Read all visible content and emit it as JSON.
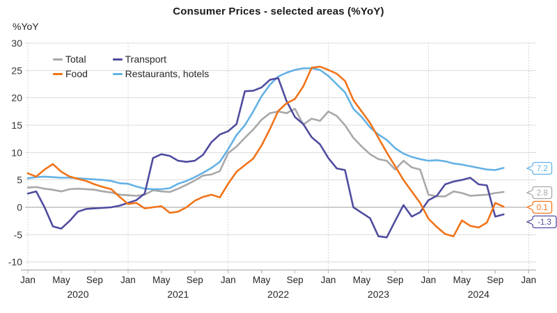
{
  "title": "Consumer Prices - selected areas (%YoY)",
  "y_axis_unit": "%YoY",
  "chart_data": {
    "type": "line",
    "title": "Consumer Prices - selected areas (%YoY)",
    "ylabel": "%YoY",
    "xlabel": "",
    "ylim": [
      -10,
      30
    ],
    "yticks": [
      30,
      25,
      20,
      15,
      10,
      5,
      0,
      -5,
      -10
    ],
    "x_range": "Jan 2020 - Oct 2024, monthly",
    "x_tick_labels": [
      "Jan",
      "May",
      "Sep",
      "Jan",
      "May",
      "Sep",
      "Jan",
      "May",
      "Sep",
      "Jan",
      "May",
      "Sep",
      "Jan",
      "May",
      "Sep",
      "Jan"
    ],
    "year_labels": [
      "2020",
      "2021",
      "2022",
      "2023",
      "2024"
    ],
    "grid": "horizontal solid gridlines, dotted vertical lines at each January",
    "legend_position": "top-left inside plot",
    "legend_order": [
      "Total",
      "Transport",
      "Food",
      "Restaurants, hotels"
    ],
    "series": [
      {
        "name": "Total",
        "color": "#a8a8a8",
        "end_label": "2.8",
        "values": [
          3.6,
          3.7,
          3.4,
          3.2,
          2.9,
          3.3,
          3.4,
          3.3,
          3.2,
          2.9,
          2.7,
          2.3,
          2.2,
          2.1,
          2.3,
          3.1,
          2.9,
          2.8,
          3.4,
          4.1,
          4.9,
          5.8,
          6.0,
          6.6,
          9.9,
          11.1,
          12.7,
          14.2,
          16.0,
          17.2,
          17.5,
          17.2,
          18.0,
          15.1,
          16.2,
          15.8,
          17.5,
          16.7,
          15.0,
          12.7,
          11.1,
          9.7,
          8.8,
          8.5,
          6.9,
          8.5,
          7.3,
          6.9,
          2.3,
          2.0,
          2.0,
          2.9,
          2.6,
          2.1,
          2.2,
          2.3,
          2.6,
          2.8
        ]
      },
      {
        "name": "Transport",
        "color": "#4f4c9f",
        "end_label": "-1.3",
        "values": [
          2.5,
          2.9,
          0.0,
          -3.5,
          -3.9,
          -2.5,
          -0.8,
          -0.3,
          -0.2,
          -0.1,
          0.0,
          0.3,
          0.8,
          1.3,
          2.5,
          9.0,
          9.7,
          9.4,
          8.5,
          8.3,
          8.5,
          9.6,
          11.9,
          13.3,
          13.9,
          15.2,
          21.2,
          21.3,
          21.9,
          23.3,
          23.6,
          19.4,
          16.5,
          15.2,
          12.8,
          11.5,
          9.0,
          7.1,
          6.8,
          0.0,
          -1.0,
          -2.0,
          -5.3,
          -5.5,
          -2.5,
          0.4,
          -1.7,
          -0.9,
          1.3,
          2.1,
          4.2,
          4.7,
          5.0,
          5.4,
          4.2,
          4.0,
          -1.7,
          -1.3
        ]
      },
      {
        "name": "Food",
        "color": "#f07319",
        "end_label": "0.1",
        "values": [
          6.2,
          5.6,
          6.9,
          7.9,
          6.5,
          5.6,
          5.2,
          4.8,
          4.2,
          3.7,
          3.3,
          1.9,
          0.6,
          0.8,
          -0.2,
          0.0,
          0.2,
          -1.0,
          -0.8,
          0.0,
          1.2,
          1.9,
          2.3,
          1.8,
          4.3,
          6.5,
          7.7,
          8.9,
          11.3,
          14.3,
          17.6,
          19.0,
          19.8,
          22.1,
          25.5,
          25.7,
          25.1,
          24.4,
          23.1,
          19.6,
          17.5,
          15.4,
          12.7,
          10.0,
          7.5,
          5.0,
          2.9,
          0.8,
          -2.1,
          -3.6,
          -4.9,
          -5.3,
          -2.4,
          -3.4,
          -3.7,
          -2.8,
          0.8,
          0.1
        ]
      },
      {
        "name": "Restaurants, hotels",
        "color": "#63b1e5",
        "end_label": "7.2",
        "values": [
          5.3,
          5.5,
          5.6,
          5.5,
          5.4,
          5.4,
          5.3,
          5.2,
          5.1,
          5.0,
          4.8,
          4.4,
          4.3,
          3.8,
          3.4,
          3.3,
          3.3,
          3.5,
          4.3,
          4.8,
          5.5,
          6.3,
          7.2,
          8.3,
          10.6,
          13.2,
          15.0,
          17.5,
          20.3,
          22.4,
          23.9,
          24.6,
          25.1,
          25.4,
          25.4,
          25.1,
          24.0,
          22.5,
          21.0,
          18.0,
          16.5,
          14.6,
          13.3,
          12.3,
          10.8,
          9.8,
          9.2,
          8.8,
          8.5,
          8.6,
          8.4,
          8.0,
          7.8,
          7.5,
          7.2,
          6.9,
          6.8,
          7.2
        ]
      }
    ]
  }
}
